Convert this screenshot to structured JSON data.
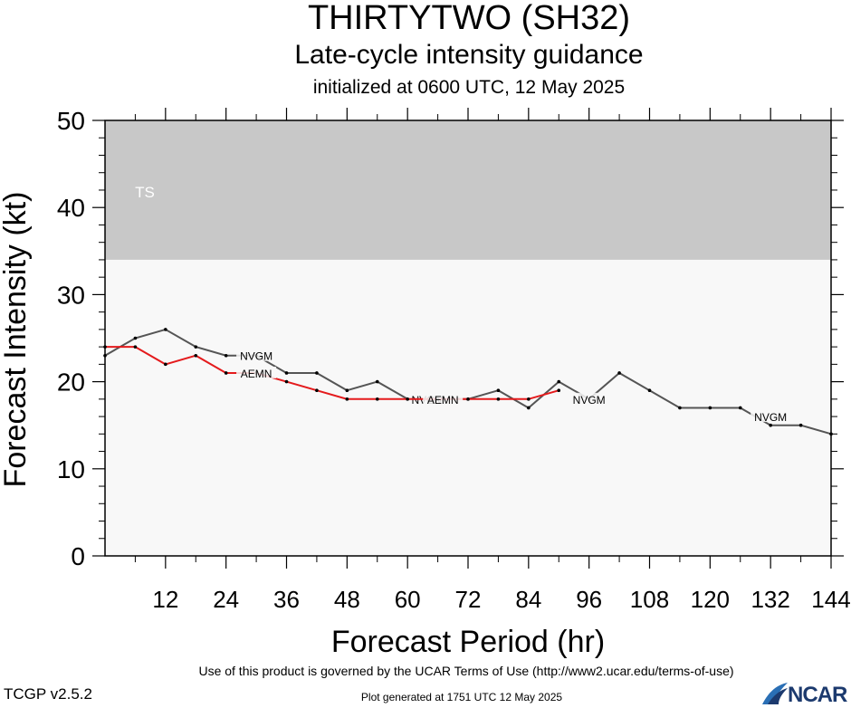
{
  "header": {
    "title": "THIRTYTWO (SH32)",
    "subtitle": "Late-cycle intensity guidance",
    "initialized": "initialized at 0600 UTC, 12 May 2025"
  },
  "footer": {
    "terms": "Use of this product is governed by the UCAR Terms of Use (http://www2.ucar.edu/terms-of-use)",
    "version": "TCGP v2.5.2",
    "generated": "Plot generated at 1751 UTC   12 May 2025",
    "logo_text": "NCAR"
  },
  "chart_data": {
    "type": "line",
    "title": "THIRTYTWO (SH32)",
    "xlabel": "Forecast Period (hr)",
    "ylabel": "Forecast Intensity (kt)",
    "xlim": [
      0,
      144
    ],
    "ylim": [
      0,
      50
    ],
    "xticks": [
      12,
      24,
      36,
      48,
      60,
      72,
      84,
      96,
      108,
      120,
      132,
      144
    ],
    "yticks": [
      0,
      10,
      20,
      30,
      40,
      50
    ],
    "bands": [
      {
        "label": "TS",
        "y_from": 34,
        "y_to": 50,
        "color": "#c8c8c8"
      }
    ],
    "background_color": "#f8f8f8",
    "series": [
      {
        "name": "NVGM",
        "color": "#555555",
        "x": [
          0,
          6,
          12,
          18,
          24,
          30,
          36,
          42,
          48,
          54,
          60,
          66,
          72,
          78,
          84,
          90,
          96,
          102,
          108,
          114,
          120,
          126,
          132,
          138,
          144
        ],
        "y": [
          23,
          25,
          26,
          24,
          23,
          23,
          21,
          21,
          19,
          20,
          18,
          18,
          18,
          19,
          17,
          20,
          18,
          21,
          19,
          17,
          17,
          17,
          15,
          15,
          14
        ],
        "label_positions": [
          [
            30,
            23
          ],
          [
            64,
            18
          ],
          [
            96,
            18
          ],
          [
            132,
            16
          ]
        ]
      },
      {
        "name": "AEMN",
        "color": "#e41a1c",
        "x": [
          0,
          6,
          12,
          18,
          24,
          30,
          36,
          42,
          48,
          54,
          60,
          66,
          72,
          78,
          84,
          90
        ],
        "y": [
          24,
          24,
          22,
          23,
          21,
          21,
          20,
          19,
          18,
          18,
          18,
          18,
          18,
          18,
          18,
          19
        ],
        "label_positions": [
          [
            30,
            21
          ],
          [
            67,
            18
          ]
        ]
      }
    ]
  }
}
